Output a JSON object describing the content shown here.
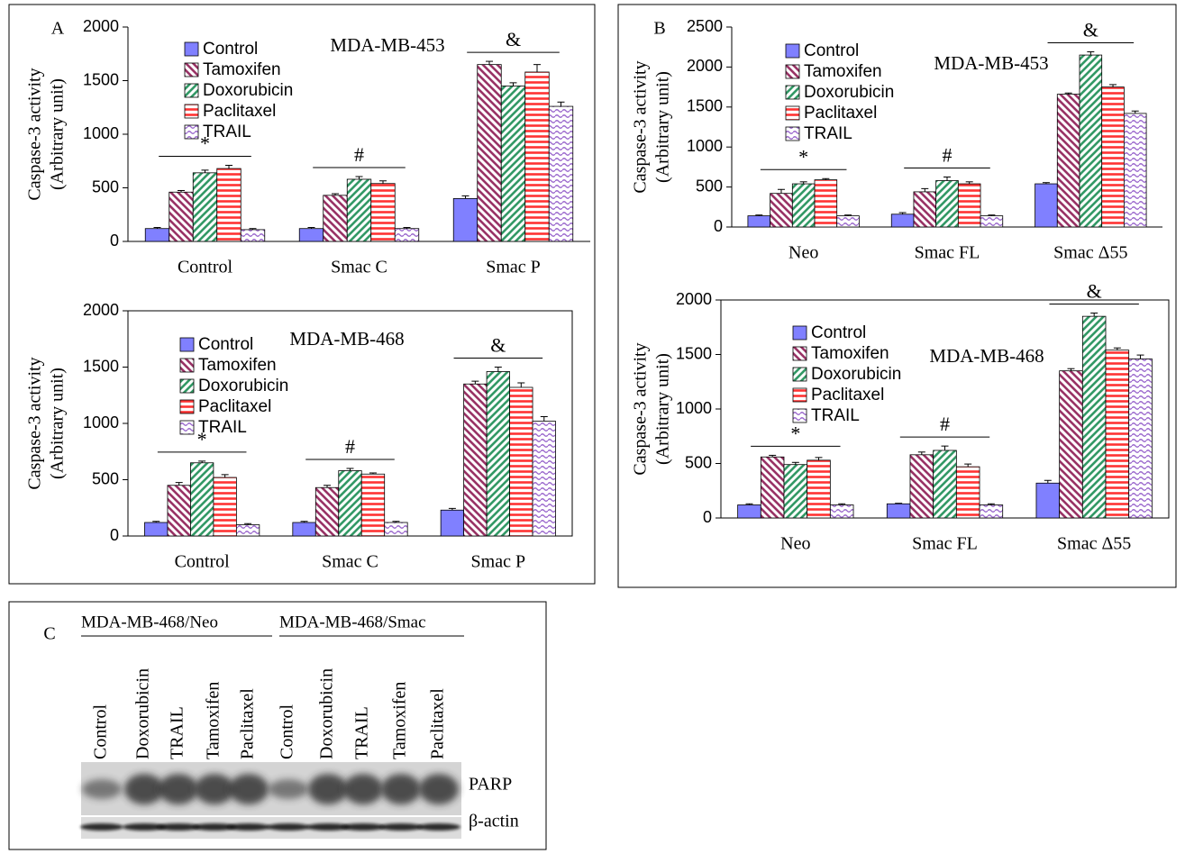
{
  "chart_data": [
    {
      "type": "bar",
      "panel": "A",
      "title": "MDA-MB-453",
      "y_label": [
        "Caspase-3 activity",
        "(Arbitrary unit)"
      ],
      "categories": [
        "Control",
        "Smac C",
        "Smac P"
      ],
      "annotations": [
        "*",
        "#",
        "&"
      ],
      "ylim": [
        0,
        2000
      ],
      "yticks": [
        0,
        500,
        1000,
        1500,
        2000
      ],
      "frame": false,
      "legend": "upper left",
      "series": [
        {
          "name": "Control",
          "color": "#8080ff",
          "pattern": "solid",
          "values": [
            120,
            120,
            400
          ],
          "errors": [
            10,
            10,
            25
          ]
        },
        {
          "name": "Tamoxifen",
          "color": "#993366",
          "pattern": "diagonal-down",
          "values": [
            460,
            430,
            1650
          ],
          "errors": [
            15,
            15,
            30
          ]
        },
        {
          "name": "Doxorubicin",
          "color": "#339966",
          "pattern": "diagonal-up",
          "values": [
            640,
            580,
            1450
          ],
          "errors": [
            25,
            25,
            30
          ]
        },
        {
          "name": "Paclitaxel",
          "color": "#ff3333",
          "pattern": "horizontal",
          "values": [
            680,
            540,
            1580
          ],
          "errors": [
            30,
            25,
            70
          ]
        },
        {
          "name": "TRAIL",
          "color": "#9966cc",
          "pattern": "wave",
          "values": [
            110,
            120,
            1260
          ],
          "errors": [
            10,
            10,
            40
          ]
        }
      ]
    },
    {
      "type": "bar",
      "title": "MDA-MB-468",
      "y_label": [
        "Caspase-3 activity",
        "(Arbitrary unit)"
      ],
      "categories": [
        "Control",
        "Smac C",
        "Smac P"
      ],
      "annotations": [
        "*",
        "#",
        "&"
      ],
      "ylim": [
        0,
        2000
      ],
      "yticks": [
        0,
        500,
        1000,
        1500,
        2000
      ],
      "frame": true,
      "legend": "upper left",
      "series": [
        {
          "name": "Control",
          "color": "#8080ff",
          "pattern": "solid",
          "values": [
            120,
            120,
            230
          ],
          "errors": [
            10,
            10,
            15
          ]
        },
        {
          "name": "Tamoxifen",
          "color": "#993366",
          "pattern": "diagonal-down",
          "values": [
            450,
            430,
            1350
          ],
          "errors": [
            25,
            20,
            25
          ]
        },
        {
          "name": "Doxorubicin",
          "color": "#339966",
          "pattern": "diagonal-up",
          "values": [
            650,
            580,
            1460
          ],
          "errors": [
            15,
            20,
            40
          ]
        },
        {
          "name": "Paclitaxel",
          "color": "#ff3333",
          "pattern": "horizontal",
          "values": [
            520,
            550,
            1320
          ],
          "errors": [
            25,
            10,
            40
          ]
        },
        {
          "name": "TRAIL",
          "color": "#9966cc",
          "pattern": "wave",
          "values": [
            100,
            120,
            1020
          ],
          "errors": [
            10,
            10,
            40
          ]
        }
      ]
    },
    {
      "type": "bar",
      "panel": "B",
      "title": "MDA-MB-453",
      "y_label": [
        "Caspase-3 activity",
        "(Arbitrary unit)"
      ],
      "categories": [
        "Neo",
        "Smac FL",
        "Smac Δ55"
      ],
      "annotations": [
        "*",
        "#",
        "&"
      ],
      "ylim": [
        0,
        2500
      ],
      "yticks": [
        0,
        500,
        1000,
        1500,
        2000,
        2500
      ],
      "frame": false,
      "legend": "upper left",
      "series": [
        {
          "name": "Control",
          "color": "#8080ff",
          "pattern": "solid",
          "values": [
            140,
            160,
            540
          ],
          "errors": [
            10,
            20,
            15
          ]
        },
        {
          "name": "Tamoxifen",
          "color": "#993366",
          "pattern": "diagonal-down",
          "values": [
            420,
            440,
            1660
          ],
          "errors": [
            50,
            40,
            15
          ]
        },
        {
          "name": "Doxorubicin",
          "color": "#339966",
          "pattern": "diagonal-up",
          "values": [
            540,
            580,
            2150
          ],
          "errors": [
            25,
            45,
            40
          ]
        },
        {
          "name": "Paclitaxel",
          "color": "#ff3333",
          "pattern": "horizontal",
          "values": [
            590,
            540,
            1750
          ],
          "errors": [
            15,
            25,
            30
          ]
        },
        {
          "name": "TRAIL",
          "color": "#9966cc",
          "pattern": "wave",
          "values": [
            140,
            140,
            1420
          ],
          "errors": [
            10,
            10,
            30
          ]
        }
      ]
    },
    {
      "type": "bar",
      "title": "MDA-MB-468",
      "y_label": [
        "Caspase-3 activity",
        "(Arbitrary unit)"
      ],
      "categories": [
        "Neo",
        "Smac FL",
        "Smac Δ55"
      ],
      "annotations": [
        "*",
        "#",
        "&"
      ],
      "ylim": [
        0,
        2000
      ],
      "yticks": [
        0,
        500,
        1000,
        1500,
        2000
      ],
      "frame": true,
      "legend": "upper left",
      "series": [
        {
          "name": "Control",
          "color": "#8080ff",
          "pattern": "solid",
          "values": [
            120,
            130,
            320
          ],
          "errors": [
            10,
            5,
            25
          ]
        },
        {
          "name": "Tamoxifen",
          "color": "#993366",
          "pattern": "diagonal-down",
          "values": [
            560,
            580,
            1350
          ],
          "errors": [
            15,
            25,
            20
          ]
        },
        {
          "name": "Doxorubicin",
          "color": "#339966",
          "pattern": "diagonal-up",
          "values": [
            490,
            620,
            1850
          ],
          "errors": [
            20,
            40,
            30
          ]
        },
        {
          "name": "Paclitaxel",
          "color": "#ff3333",
          "pattern": "horizontal",
          "values": [
            530,
            470,
            1540
          ],
          "errors": [
            25,
            25,
            20
          ]
        },
        {
          "name": "TRAIL",
          "color": "#9966cc",
          "pattern": "wave",
          "values": [
            120,
            120,
            1460
          ],
          "errors": [
            10,
            10,
            35
          ]
        }
      ]
    }
  ],
  "blot": {
    "panel": "C",
    "groups": [
      "MDA-MB-468/Neo",
      "MDA-MB-468/Smac"
    ],
    "lanes": [
      [
        "Control",
        "Doxorubicin",
        "TRAIL",
        "Tamoxifen",
        "Paclitaxel"
      ],
      [
        "Control",
        "Doxorubicin",
        "TRAIL",
        "Tamoxifen",
        "Paclitaxel"
      ]
    ],
    "bands": [
      "PARP",
      "β-actin"
    ]
  }
}
